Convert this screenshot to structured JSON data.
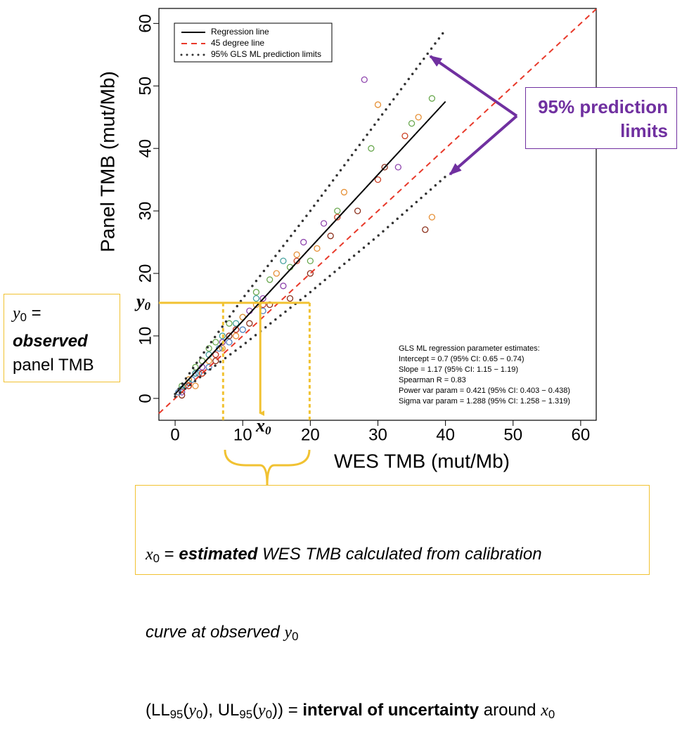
{
  "chart_data": {
    "type": "scatter",
    "xlabel": "WES TMB (mut/Mb)",
    "ylabel": "Panel TMB (mut/Mb)",
    "xlim": [
      -2.4,
      62.3
    ],
    "ylim": [
      -3.5,
      62.4
    ],
    "xticks": [
      0,
      10,
      20,
      30,
      40,
      50,
      60
    ],
    "yticks": [
      0,
      10,
      20,
      30,
      40,
      50,
      60
    ],
    "legend": "upper left",
    "series": [
      {
        "name": "Regression line",
        "color": "#000000",
        "style": "solid",
        "x": [
          0,
          40
        ],
        "y": [
          0.7,
          47.5
        ]
      },
      {
        "name": "45 degree line",
        "color": "#e8392a",
        "style": "dashed",
        "x": [
          -2.4,
          62.3
        ],
        "y": [
          -2.4,
          62.3
        ]
      },
      {
        "name": "95% GLS ML prediction limits",
        "color": "#333333",
        "style": "dotted",
        "x": [
          0,
          5,
          10,
          20,
          30,
          40
        ],
        "upper": [
          0.7,
          8.5,
          16,
          30,
          44.5,
          59
        ],
        "lower": [
          0.3,
          4.5,
          8.5,
          17,
          26,
          35.5
        ]
      }
    ],
    "points": [
      {
        "color": "#6aa84f",
        "x": [
          1,
          2,
          3,
          4,
          5,
          6,
          8,
          10,
          12,
          14,
          17,
          20,
          24,
          29,
          35,
          38
        ],
        "y": [
          2,
          3,
          5,
          6,
          8,
          9,
          12,
          13,
          17,
          19,
          21,
          22,
          30,
          40,
          44,
          48
        ]
      },
      {
        "color": "#8e44ad",
        "x": [
          1,
          3,
          4,
          6,
          7,
          9,
          11,
          13,
          16,
          19,
          22,
          28,
          33
        ],
        "y": [
          1,
          4,
          5,
          7,
          9,
          11,
          14,
          16,
          18,
          25,
          28,
          51,
          37
        ]
      },
      {
        "color": "#e69138",
        "x": [
          2,
          3,
          5,
          7,
          9,
          10,
          12,
          15,
          18,
          21,
          25,
          30,
          36,
          38
        ],
        "y": [
          3,
          2,
          6,
          8,
          10,
          13,
          15,
          20,
          23,
          24,
          33,
          47,
          45,
          29
        ]
      },
      {
        "color": "#8b2e1a",
        "x": [
          1,
          2,
          4,
          6,
          8,
          11,
          14,
          17,
          20,
          23,
          27,
          31,
          37
        ],
        "y": [
          0.5,
          2,
          4,
          6,
          10,
          12,
          15,
          16,
          20,
          26,
          30,
          37,
          27
        ]
      },
      {
        "color": "#4f81bd",
        "x": [
          0.5,
          1.5,
          2.5,
          3.5,
          5,
          6.5,
          8,
          10,
          13
        ],
        "y": [
          1,
          2,
          3,
          4,
          5,
          8,
          9,
          11,
          14
        ]
      },
      {
        "color": "#45a29e",
        "x": [
          1,
          2,
          3,
          5,
          7,
          9,
          12,
          16
        ],
        "y": [
          1.5,
          2.5,
          4,
          7,
          10,
          12,
          16,
          22
        ]
      },
      {
        "color": "#cc4125",
        "x": [
          2,
          4,
          6,
          9,
          13,
          18,
          24,
          30,
          34
        ],
        "y": [
          2,
          4,
          7,
          11,
          15,
          22,
          29,
          35,
          42
        ]
      }
    ],
    "stats": [
      "GLS ML regression parameter estimates:",
      "Intercept = 0.7  (95% CI: 0.65 − 0.74)",
      "Slope = 1.17  (95% CI: 1.15 − 1.19)",
      "Spearman R = 0.83",
      "Power var param = 0.421  (95% CI: 0.403 − 0.438)",
      "Sigma var param = 1.288  (95% CI: 1.258 − 1.319)"
    ],
    "calibration": {
      "y0": 15.3,
      "x0": 12.6,
      "ll": 7.1,
      "ul": 19.9,
      "y_label": [
        "y",
        "0"
      ],
      "x_label": [
        "x",
        "0"
      ]
    },
    "limits_note": [
      "95% prediction",
      "limits"
    ],
    "y0_note": [
      [
        "y",
        "0",
        " ="
      ],
      [
        "observed"
      ],
      [
        "panel TMB"
      ]
    ],
    "x0_note": [
      [
        "x",
        "0",
        " = ",
        "estimated",
        " WES TMB calculated from calibration"
      ],
      [
        "curve at observed ",
        "y",
        "0"
      ],
      [
        "(LL",
        "95",
        "(",
        "y",
        "0",
        "), UL",
        "95",
        "(",
        "y",
        "0",
        ")) = ",
        "interval of uncertainty",
        " around ",
        "x",
        "0"
      ]
    ]
  }
}
